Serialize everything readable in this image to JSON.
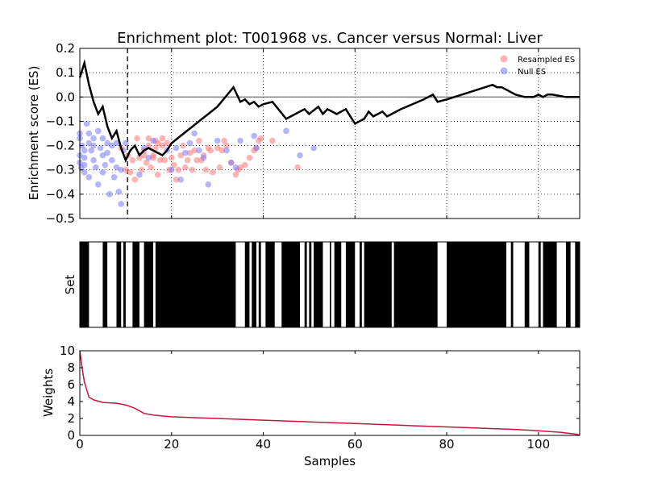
{
  "chart_data": [
    {
      "type": "scatter",
      "panel": "enrichment",
      "title": "Enrichment plot: T001968 vs. Cancer versus Normal: Liver",
      "xlabel": "",
      "ylabel": "Enrichment score (ES)",
      "xlim": [
        0,
        109
      ],
      "ylim": [
        -0.5,
        0.2
      ],
      "yticks": [
        0.2,
        0.1,
        0.0,
        -0.1,
        -0.2,
        -0.3,
        -0.4,
        -0.5
      ],
      "yticklabels": [
        "0.2",
        "0.1",
        "0.0",
        "−0.1",
        "−0.2",
        "−0.3",
        "−0.4",
        "−0.5"
      ],
      "grid": true,
      "legend_position": "top-right",
      "legend": [
        "Resampled ES",
        "Null ES"
      ],
      "colors": {
        "resampled": "#ff7777",
        "null": "#7777ff",
        "es_line": "#000000"
      },
      "vline_x": 10.4,
      "es_curve": {
        "x": [
          0,
          1,
          2,
          3,
          4,
          5,
          6,
          7,
          8,
          9,
          10,
          11,
          12,
          13,
          14,
          15,
          16,
          17,
          18,
          19,
          20,
          22,
          24,
          26,
          28,
          30,
          33.5,
          35,
          36,
          37,
          38,
          39,
          40,
          42,
          45,
          47,
          49,
          50,
          52,
          53,
          54,
          56,
          58,
          60,
          62,
          63,
          64,
          65,
          66,
          67,
          70,
          75,
          77,
          78,
          80,
          85,
          90,
          91,
          92,
          95,
          97,
          99,
          100,
          101,
          102,
          103,
          106,
          109
        ],
        "y": [
          0.08,
          0.14,
          0.05,
          -0.02,
          -0.07,
          -0.04,
          -0.12,
          -0.17,
          -0.14,
          -0.21,
          -0.26,
          -0.22,
          -0.2,
          -0.24,
          -0.22,
          -0.21,
          -0.22,
          -0.23,
          -0.24,
          -0.22,
          -0.19,
          -0.16,
          -0.13,
          -0.1,
          -0.07,
          -0.04,
          0.04,
          -0.02,
          -0.01,
          -0.03,
          -0.02,
          -0.04,
          -0.03,
          -0.02,
          -0.09,
          -0.07,
          -0.05,
          -0.07,
          -0.04,
          -0.07,
          -0.05,
          -0.07,
          -0.05,
          -0.11,
          -0.09,
          -0.06,
          -0.08,
          -0.07,
          -0.06,
          -0.08,
          -0.05,
          -0.01,
          0.01,
          -0.02,
          -0.01,
          0.02,
          0.05,
          0.04,
          0.04,
          0.01,
          0.0,
          0.0,
          0.01,
          0.0,
          0.01,
          0.01,
          0.0,
          0.0
        ]
      },
      "resampled_points": {
        "x": [
          9,
          10,
          10.5,
          11,
          11.5,
          12,
          12.5,
          13,
          13.5,
          14,
          14,
          14.5,
          15,
          15,
          15.5,
          16,
          16,
          16.5,
          16.5,
          17,
          17,
          17.5,
          18,
          18,
          18.5,
          19,
          19.5,
          20,
          20.5,
          21,
          21.5,
          22,
          22.5,
          23,
          23.5,
          24,
          24.5,
          25,
          25.5,
          26,
          26.5,
          27,
          27.5,
          28,
          28.5,
          29,
          30,
          30.5,
          31,
          31.5,
          32,
          33,
          34,
          34.5,
          35,
          36,
          37,
          38,
          38.5,
          39,
          39.5,
          42,
          47.5
        ],
        "y": [
          -0.21,
          -0.3,
          -0.24,
          -0.31,
          -0.26,
          -0.34,
          -0.17,
          -0.25,
          -0.3,
          -0.22,
          -0.24,
          -0.27,
          -0.2,
          -0.17,
          -0.29,
          -0.24,
          -0.25,
          -0.21,
          -0.18,
          -0.19,
          -0.32,
          -0.26,
          -0.17,
          -0.2,
          -0.26,
          -0.19,
          -0.3,
          -0.25,
          -0.28,
          -0.34,
          -0.3,
          -0.24,
          -0.2,
          -0.29,
          -0.26,
          -0.23,
          -0.3,
          -0.22,
          -0.26,
          -0.18,
          -0.26,
          -0.24,
          -0.3,
          -0.21,
          -0.22,
          -0.31,
          -0.21,
          -0.29,
          -0.22,
          -0.18,
          -0.2,
          -0.27,
          -0.32,
          -0.3,
          -0.29,
          -0.28,
          -0.25,
          -0.22,
          -0.21,
          -0.18,
          -0.17,
          -0.18,
          -0.29
        ]
      },
      "null_points": {
        "x": [
          0,
          0,
          0,
          0,
          0.3,
          0.5,
          1,
          1,
          1,
          1,
          1.5,
          2,
          2,
          2,
          2.5,
          3,
          3,
          3,
          3.5,
          4,
          4,
          4.5,
          5,
          5,
          5,
          5.5,
          6,
          6,
          6.5,
          7,
          7,
          7.5,
          8,
          8,
          8.5,
          9,
          9,
          9.5,
          10,
          13,
          14,
          15,
          16,
          19,
          20,
          21,
          22,
          23,
          24,
          25,
          26,
          27,
          28,
          30,
          32,
          33,
          34,
          35,
          38,
          38.5,
          45,
          48,
          51
        ],
        "y": [
          -0.15,
          -0.17,
          -0.24,
          -0.27,
          -0.29,
          -0.2,
          -0.22,
          -0.25,
          -0.28,
          -0.31,
          -0.11,
          -0.15,
          -0.19,
          -0.33,
          -0.22,
          -0.17,
          -0.2,
          -0.26,
          -0.29,
          -0.14,
          -0.36,
          -0.21,
          -0.17,
          -0.24,
          -0.31,
          -0.28,
          -0.19,
          -0.23,
          -0.4,
          -0.2,
          -0.26,
          -0.33,
          -0.19,
          -0.29,
          -0.39,
          -0.44,
          -0.3,
          -0.22,
          -0.19,
          -0.32,
          -0.21,
          -0.25,
          -0.18,
          -0.22,
          -0.3,
          -0.21,
          -0.34,
          -0.23,
          -0.19,
          -0.15,
          -0.22,
          -0.25,
          -0.36,
          -0.18,
          -0.22,
          -0.27,
          -0.29,
          -0.18,
          -0.16,
          -0.21,
          -0.14,
          -0.24,
          -0.21
        ]
      }
    },
    {
      "type": "barcode",
      "panel": "set",
      "ylabel": "Set",
      "xlim": [
        0,
        109
      ],
      "filled_intervals": [
        [
          0,
          2
        ],
        [
          5,
          6
        ],
        [
          8,
          9
        ],
        [
          9.5,
          10
        ],
        [
          11.5,
          13
        ],
        [
          14,
          16
        ],
        [
          16.5,
          17.5
        ],
        [
          17.5,
          34
        ],
        [
          36,
          37
        ],
        [
          37.5,
          38.5
        ],
        [
          39,
          39.5
        ],
        [
          40.5,
          42.5
        ],
        [
          44,
          48
        ],
        [
          49,
          49.5
        ],
        [
          50,
          50.5
        ],
        [
          51,
          53
        ],
        [
          54.5,
          54.8
        ],
        [
          55.5,
          57
        ],
        [
          58,
          60
        ],
        [
          61,
          61.5
        ],
        [
          62,
          68
        ],
        [
          68.5,
          78
        ],
        [
          80,
          93
        ],
        [
          94,
          94.5
        ],
        [
          97,
          98
        ],
        [
          100,
          100.5
        ],
        [
          101,
          104
        ],
        [
          106,
          107
        ],
        [
          108,
          109
        ]
      ]
    },
    {
      "type": "line",
      "panel": "weights",
      "xlabel": "Samples",
      "ylabel": "Weights",
      "xlim": [
        0,
        109
      ],
      "ylim": [
        0,
        10
      ],
      "xticks": [
        0,
        20,
        40,
        60,
        80,
        100
      ],
      "yticks": [
        0,
        2,
        4,
        6,
        8,
        10
      ],
      "colors": {
        "line": "#c8143c"
      },
      "x": [
        0,
        0.5,
        1,
        2,
        3,
        5,
        8,
        10,
        12,
        14,
        16,
        18,
        20,
        25,
        30,
        40,
        50,
        60,
        70,
        75,
        80,
        85,
        90,
        95,
        100,
        105,
        108,
        109
      ],
      "y": [
        10,
        8,
        6.3,
        4.5,
        4.2,
        3.9,
        3.8,
        3.6,
        3.2,
        2.6,
        2.4,
        2.3,
        2.2,
        2.1,
        2.0,
        1.8,
        1.6,
        1.4,
        1.2,
        1.1,
        1.0,
        0.9,
        0.8,
        0.7,
        0.55,
        0.35,
        0.15,
        0.05
      ]
    }
  ]
}
